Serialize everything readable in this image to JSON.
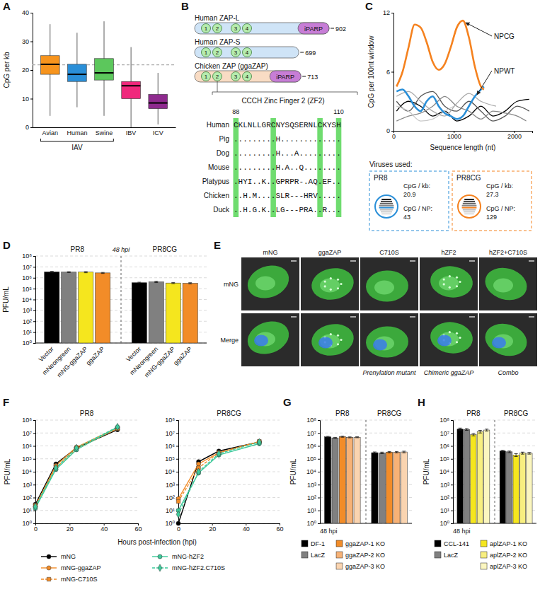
{
  "chart_data": [
    {
      "type": "box",
      "panel": "A",
      "ylabel": "CpG per kb",
      "categories": [
        "Avian",
        "Human",
        "Swine",
        "IBV",
        "ICV"
      ],
      "colors": [
        "#f7941d",
        "#2a8fd8",
        "#5cc75c",
        "#f0287c",
        "#8e2a8e"
      ],
      "min": [
        4,
        7,
        4,
        0,
        1
      ],
      "q1": [
        18.5,
        16,
        16.5,
        10,
        6.5
      ],
      "median": [
        22,
        18.5,
        19,
        14.5,
        8.5
      ],
      "q3": [
        25,
        22,
        24,
        16,
        11.5
      ],
      "max": [
        36,
        33,
        37,
        28,
        19
      ],
      "ylim": [
        0,
        40
      ],
      "yticks": [
        0,
        10,
        20,
        30,
        40
      ],
      "reference_line": 21.8,
      "annotations": [
        {
          "text": "IAV",
          "span": [
            0,
            2
          ]
        }
      ]
    },
    {
      "type": "line",
      "panel": "C",
      "xlabel": "Sequence length (nt)",
      "ylabel": "CpG per 100nt window",
      "xlim": [
        0,
        2300
      ],
      "xticks": [
        0,
        1000,
        2000
      ],
      "ylim": [
        0,
        12
      ],
      "yticks": [
        0,
        6,
        12
      ],
      "series": [
        {
          "color": "#000000",
          "x": [
            50,
            250,
            450,
            650,
            850,
            1050,
            1250,
            1450,
            1650,
            1850,
            2050,
            2250
          ],
          "values": [
            2,
            3,
            2.5,
            1.5,
            2,
            1,
            1.5,
            2.5,
            1.5,
            2,
            3,
            3.2
          ]
        },
        {
          "color": "#555555",
          "x": [
            50,
            250,
            450,
            650,
            850,
            1050,
            1250,
            1450,
            1650,
            1850,
            2050,
            2250
          ],
          "values": [
            3,
            2,
            3.5,
            4,
            2.5,
            2,
            3,
            2,
            1,
            1.5,
            2.5,
            2
          ]
        },
        {
          "color": "#888888",
          "x": [
            50,
            250,
            450,
            650,
            850,
            1050,
            1250,
            1450,
            1650,
            1850,
            2050,
            2200
          ],
          "values": [
            1,
            1.5,
            1.8,
            2.5,
            3.5,
            2.5,
            2,
            1.2,
            2,
            1.8,
            1.5,
            1
          ]
        },
        {
          "color": "#aaaaaa",
          "x": [
            50,
            250,
            450,
            650,
            850,
            1050,
            1250,
            1450,
            1700
          ],
          "values": [
            3.5,
            4,
            3,
            2,
            1.5,
            2.8,
            3.8,
            3,
            2.5
          ]
        },
        {
          "color": "#c8c8c8",
          "x": [
            50,
            250,
            450,
            650,
            850,
            1000
          ],
          "values": [
            2.5,
            2,
            1,
            1.2,
            2,
            2.5
          ]
        },
        {
          "name": "NPWT",
          "color": "#2a8fd8",
          "x": [
            50,
            150,
            250,
            350,
            450,
            550,
            650,
            750,
            850,
            950,
            1050,
            1150,
            1250,
            1350,
            1450,
            1500
          ],
          "values": [
            4,
            4.2,
            3.5,
            2.5,
            2,
            3,
            3.5,
            2.5,
            1.8,
            1.5,
            1.2,
            1.5,
            2.5,
            3.5,
            4.2,
            4.5
          ]
        },
        {
          "name": "NPCG",
          "color": "#f5821f",
          "x": [
            50,
            150,
            250,
            350,
            450,
            550,
            650,
            750,
            850,
            950,
            1050,
            1150,
            1250,
            1350,
            1450,
            1500
          ],
          "values": [
            4.5,
            6,
            8.5,
            10.8,
            10.5,
            9,
            7,
            6.2,
            6.8,
            8.5,
            10.5,
            11.2,
            9.5,
            6.5,
            4.5,
            4.2
          ]
        }
      ],
      "viruses_title": "Viruses used:",
      "viruses": [
        {
          "name": "PR8",
          "color": "#2a8fd8",
          "stats": [
            {
              "label": "CpG / kb:",
              "value": 20.9
            },
            {
              "label": "CpG / NP:",
              "value": 43
            }
          ]
        },
        {
          "name": "PR8CG",
          "color": "#f5821f",
          "stats": [
            {
              "label": "CpG / kb:",
              "value": 27.3
            },
            {
              "label": "CpG / NP:",
              "value": 129
            }
          ]
        }
      ]
    },
    {
      "type": "bar",
      "panel": "D",
      "log": "y",
      "grid": true,
      "ylabel": "PFU/mL",
      "categories": [
        "PR8",
        "PR8CG"
      ],
      "annotations": [
        "48 hpi"
      ],
      "ylim": [
        1,
        100000000
      ],
      "yticks": [
        {
          "value": 1,
          "label": "10⁰"
        },
        {
          "value": 10,
          "label": "10¹"
        },
        {
          "value": 100,
          "label": "10²"
        },
        {
          "value": 1000,
          "label": "10³"
        },
        {
          "value": 10000,
          "label": "10⁴"
        },
        {
          "value": 100000,
          "label": "10⁵"
        },
        {
          "value": 1000000,
          "label": "10⁶"
        },
        {
          "value": 10000000,
          "label": "10⁷"
        },
        {
          "value": 100000000,
          "label": "10⁸"
        }
      ],
      "series": [
        {
          "name": "Vector",
          "color": "#000000",
          "values": [
            3500000,
            350000
          ],
          "errors": [
            400000,
            40000
          ]
        },
        {
          "name": "mNeongreen",
          "color": "#808080",
          "values": [
            3300000,
            420000
          ],
          "errors": [
            350000,
            60000
          ]
        },
        {
          "name": "mNG-ggaZAP",
          "color": "#f5e61e",
          "values": [
            3300000,
            330000
          ],
          "errors": [
            400000,
            40000
          ]
        },
        {
          "name": "ggaZAP",
          "color": "#f28c28",
          "values": [
            2800000,
            310000
          ],
          "errors": [
            300000,
            40000
          ]
        }
      ]
    },
    {
      "type": "line",
      "panel": "F",
      "title": "PR8",
      "log": "y",
      "grid": true,
      "legend": "bottom",
      "xlabel": "Hours post-infection (hpi)",
      "ylabel": "PFU/mL",
      "x": [
        0,
        12,
        24,
        48
      ],
      "xlim": [
        0,
        60
      ],
      "xticks": [
        0,
        20,
        40,
        60
      ],
      "ylim": [
        1,
        100000000
      ],
      "yticks": [
        {
          "value": 1,
          "label": "10⁰"
        },
        {
          "value": 10,
          "label": "10¹"
        },
        {
          "value": 100,
          "label": "10²"
        },
        {
          "value": 1000,
          "label": "10³"
        },
        {
          "value": 10000,
          "label": "10⁴"
        },
        {
          "value": 100000,
          "label": "10⁵"
        },
        {
          "value": 1000000,
          "label": "10⁶"
        },
        {
          "value": 10000000,
          "label": "10⁷"
        },
        {
          "value": 100000000,
          "label": "10⁸"
        }
      ],
      "series": [
        {
          "name": "mNG",
          "color": "#000000",
          "marker": "circle",
          "line_style": "solid",
          "values": [
            30,
            40000,
            700000,
            18000000
          ]
        },
        {
          "name": "mNG-ggaZAP",
          "color": "#f28c28",
          "marker": "circle",
          "line_style": "solid",
          "values": [
            20,
            30000,
            800000,
            25000000
          ]
        },
        {
          "name": "mNG-C710S",
          "color": "#f28c28",
          "marker": "square",
          "line_style": "dashed",
          "values": [
            25,
            20000,
            600000,
            22000000
          ]
        },
        {
          "name": "mNG-hZF2",
          "color": "#3ec99a",
          "marker": "circle",
          "line_style": "solid",
          "values": [
            15,
            15000,
            500000,
            28000000
          ]
        },
        {
          "name": "mNG-hZF2.C710S",
          "color": "#3ec99a",
          "marker": "diamond",
          "line_style": "dashed",
          "values": [
            20,
            20000,
            700000,
            30000000
          ]
        }
      ]
    },
    {
      "type": "line",
      "title": "PR8CG",
      "log": "y",
      "grid": true,
      "x": [
        0,
        12,
        24,
        48
      ],
      "xlim": [
        0,
        60
      ],
      "xticks": [
        0,
        20,
        40,
        60
      ],
      "ylim": [
        1,
        100000000
      ],
      "yticks": [
        {
          "value": 1,
          "label": "10⁰"
        },
        {
          "value": 10,
          "label": "10¹"
        },
        {
          "value": 100,
          "label": "10²"
        },
        {
          "value": 1000,
          "label": "10³"
        },
        {
          "value": 10000,
          "label": "10⁴"
        },
        {
          "value": 100000,
          "label": "10⁵"
        },
        {
          "value": 1000000,
          "label": "10⁶"
        },
        {
          "value": 10000000,
          "label": "10⁷"
        },
        {
          "value": 100000000,
          "label": "10⁸"
        }
      ],
      "series": [
        {
          "color": "#000000",
          "marker": "circle",
          "line_style": "solid",
          "values": [
            1,
            60000,
            400000,
            2000000
          ]
        },
        {
          "color": "#f28c28",
          "marker": "circle",
          "line_style": "solid",
          "values": [
            80,
            40000,
            300000,
            2100000
          ]
        },
        {
          "color": "#f28c28",
          "marker": "square",
          "line_style": "dashed",
          "values": [
            50,
            20000,
            300000,
            2200000
          ]
        },
        {
          "color": "#3ec99a",
          "marker": "circle",
          "line_style": "solid",
          "values": [
            10,
            8000,
            200000,
            1500000
          ]
        },
        {
          "color": "#3ec99a",
          "marker": "diamond",
          "line_style": "dashed",
          "values": [
            5,
            10000,
            250000,
            2000000
          ]
        }
      ]
    },
    {
      "type": "bar",
      "panel": "G",
      "log": "y",
      "grid": true,
      "legend": "bottom",
      "ylabel": "PFU/mL",
      "categories": [
        "PR8",
        "PR8CG"
      ],
      "annotations": [
        "48 hpi"
      ],
      "ylim": [
        1,
        100000000
      ],
      "yticks": [
        {
          "value": 1,
          "label": "10⁰"
        },
        {
          "value": 10,
          "label": "10¹"
        },
        {
          "value": 100,
          "label": "10²"
        },
        {
          "value": 1000,
          "label": "10³"
        },
        {
          "value": 10000,
          "label": "10⁴"
        },
        {
          "value": 100000,
          "label": "10⁵"
        },
        {
          "value": 1000000,
          "label": "10⁶"
        },
        {
          "value": 10000000,
          "label": "10⁷"
        },
        {
          "value": 100000000,
          "label": "10⁸"
        }
      ],
      "series": [
        {
          "name": "DF-1",
          "color": "#000000",
          "values": [
            5000000,
            300000
          ],
          "errors": [
            500000,
            40000
          ]
        },
        {
          "name": "LacZ",
          "color": "#808080",
          "values": [
            4200000,
            290000
          ],
          "errors": [
            400000,
            40000
          ]
        },
        {
          "name": "ggaZAP-1 KO",
          "color": "#f28c28",
          "values": [
            5200000,
            330000
          ],
          "errors": [
            500000,
            40000
          ]
        },
        {
          "name": "ggaZAP-2 KO",
          "color": "#f7b276",
          "values": [
            4600000,
            330000
          ],
          "errors": [
            400000,
            40000
          ]
        },
        {
          "name": "ggaZAP-3 KO",
          "color": "#fad4b0",
          "values": [
            4700000,
            340000
          ],
          "errors": [
            400000,
            50000
          ]
        }
      ]
    },
    {
      "type": "bar",
      "panel": "H",
      "log": "y",
      "grid": true,
      "legend": "bottom",
      "ylabel": "PFU/mL",
      "categories": [
        "PR8",
        "PR8CG"
      ],
      "annotations": [
        "48 hpi"
      ],
      "ylim": [
        1,
        100000000
      ],
      "yticks": [
        {
          "value": 1,
          "label": "10⁰"
        },
        {
          "value": 10,
          "label": "10¹"
        },
        {
          "value": 100,
          "label": "10²"
        },
        {
          "value": 1000,
          "label": "10³"
        },
        {
          "value": 10000,
          "label": "10⁴"
        },
        {
          "value": 100000,
          "label": "10⁵"
        },
        {
          "value": 1000000,
          "label": "10⁶"
        },
        {
          "value": 10000000,
          "label": "10⁷"
        },
        {
          "value": 100000000,
          "label": "10⁸"
        }
      ],
      "series": [
        {
          "name": "CCL-141",
          "color": "#000000",
          "values": [
            20000000,
            400000
          ],
          "errors": [
            4000000,
            60000
          ]
        },
        {
          "name": "LacZ",
          "color": "#808080",
          "values": [
            19000000,
            350000
          ],
          "errors": [
            3000000,
            50000
          ]
        },
        {
          "name": "aplZAP-1 KO",
          "color": "#f5e61e",
          "values": [
            7500000,
            200000
          ],
          "errors": [
            1500000,
            50000
          ]
        },
        {
          "name": "aplZAP-2 KO",
          "color": "#f8ef80",
          "values": [
            13000000,
            280000
          ],
          "errors": [
            3000000,
            50000
          ]
        },
        {
          "name": "aplZAP-3 KO",
          "color": "#fbf6c0",
          "values": [
            17000000,
            270000
          ],
          "errors": [
            3000000,
            40000
          ]
        }
      ]
    }
  ],
  "diagram": {
    "panel": "B",
    "proteins": [
      {
        "name": "Human ZAP-L",
        "length": 902,
        "color": "#cfe4f7",
        "zinc_fingers": [
          "1",
          "2",
          "3",
          "4"
        ],
        "domain": "iPARP"
      },
      {
        "name": "Human ZAP-S",
        "length": 699,
        "color": "#cfe4f7",
        "zinc_fingers": [
          "1",
          "2",
          "3",
          "4"
        ]
      },
      {
        "name": "Chicken ZAP (ggaZAP)",
        "length": 713,
        "color": "#f9dcc4",
        "zinc_fingers": [
          "1",
          "2",
          "3",
          "4"
        ],
        "domain": "iPARP"
      }
    ],
    "motif_title": "CCCH Zinc Finger 2 (ZF2)",
    "motif_start": 88,
    "motif_end": 110,
    "conserved_positions": [
      1,
      9,
      19,
      23
    ],
    "alignment": [
      {
        "species": "Human",
        "sequence": "CKLNLLGRCNYSQSERNLCKYSH"
      },
      {
        "species": "Pig",
        "sequence": ".........H............."
      },
      {
        "species": "Dog",
        "sequence": ".........H...A........."
      },
      {
        "species": "Mouse",
        "sequence": ".........H.A..Q........"
      },
      {
        "species": "Platypus",
        "sequence": ".HYI..K..GPRPR-.AQ.EF.."
      },
      {
        "species": "Chicken",
        "sequence": "..H.M....SLR---HRV....."
      },
      {
        "species": "Duck",
        "sequence": "..H.G.K..LG---PRA..R..."
      }
    ]
  },
  "images": {
    "panel": "E",
    "rows": [
      "mNG",
      "Merge"
    ],
    "columns": [
      "mNG",
      "ggaZAP",
      "C710S",
      "hZF2",
      "hZF2+C710S"
    ],
    "captions": [
      null,
      null,
      "Prenylation mutant",
      "Chimeric ggaZAP",
      "Combo"
    ]
  }
}
